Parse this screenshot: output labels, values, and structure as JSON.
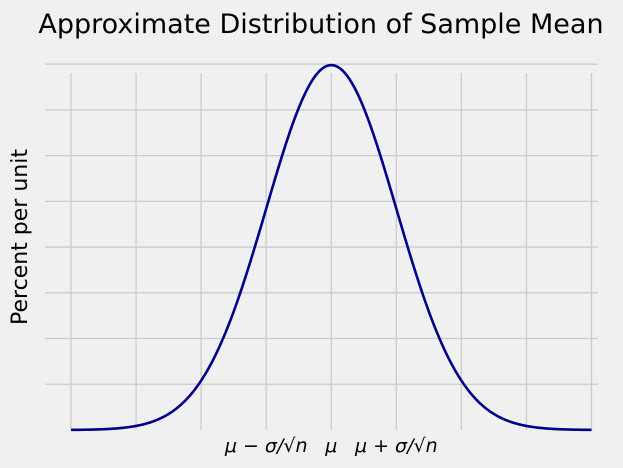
{
  "chart_data": {
    "type": "line",
    "title": "Approximate Distribution of Sample Mean",
    "xlabel": "",
    "ylabel": "Percent per unit",
    "distribution": "normal",
    "mean": 0,
    "sd": 1,
    "x_range": [
      -4,
      4
    ],
    "xlim": [
      -4.4,
      4.1
    ],
    "ylim": [
      0,
      0.41
    ],
    "grid": true,
    "x_gridlines": [
      -4,
      -3,
      -2,
      -1,
      0,
      1,
      2,
      3,
      4
    ],
    "y_gridlines": [
      0.05,
      0.1,
      0.15,
      0.2,
      0.25,
      0.3,
      0.35,
      0.4
    ],
    "x_ticks": [
      {
        "x": -1,
        "label": "μ − σ/√n"
      },
      {
        "x": 0,
        "label": "μ"
      },
      {
        "x": 1,
        "label": "μ + σ/√n"
      }
    ],
    "series": [
      {
        "color": "#00008b"
      }
    ]
  }
}
